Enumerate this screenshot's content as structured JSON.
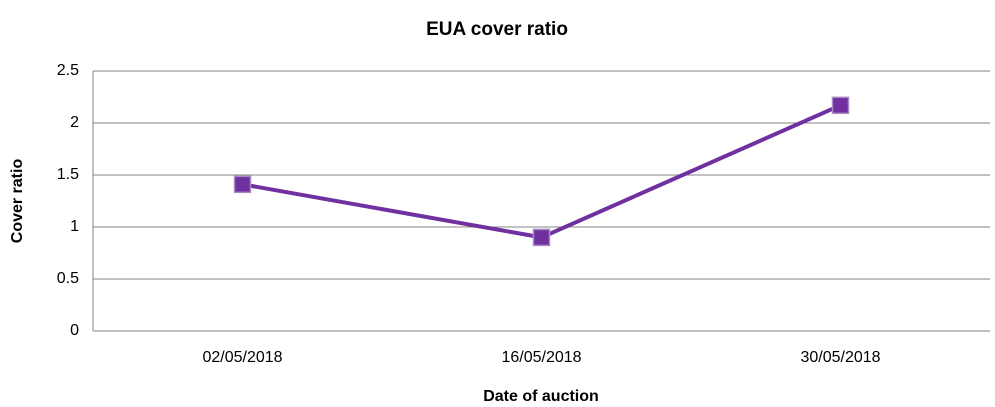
{
  "chart_data": {
    "type": "line",
    "title": "EUA cover ratio",
    "x_label": "Date of auction",
    "y_label": "Cover ratio",
    "categories": [
      "02/05/2018",
      "16/05/2018",
      "30/05/2018"
    ],
    "series": [
      {
        "name": "Cover ratio",
        "color": "#7030a0",
        "values": [
          1.41,
          0.9,
          2.17
        ]
      }
    ],
    "ylim": [
      0,
      2.5
    ],
    "yticks": [
      0,
      0.5,
      1,
      1.5,
      2,
      2.5
    ],
    "grid": true
  }
}
